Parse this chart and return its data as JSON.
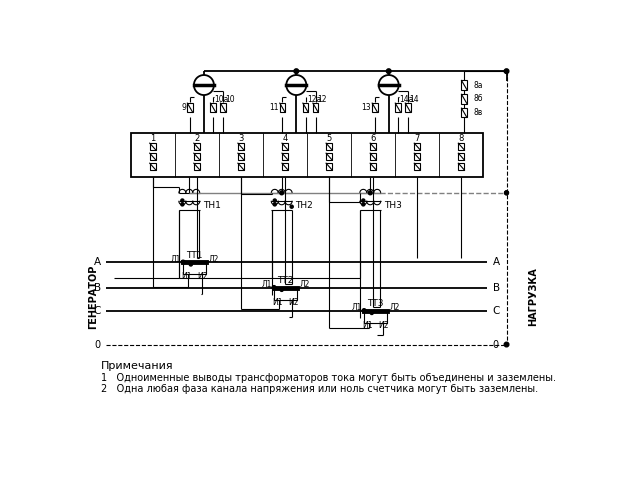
{
  "notes_header": "Примечания",
  "note1": "1   Одноименные выводы трансформаторов тока могут быть объединены и заземлены.",
  "note2": "2   Одна любая фаза канала напряжения или ноль счетчика могут быть заземлены.",
  "label_generator": "ГЕНЕРАТОР",
  "label_load": "НАГРУЗКА"
}
